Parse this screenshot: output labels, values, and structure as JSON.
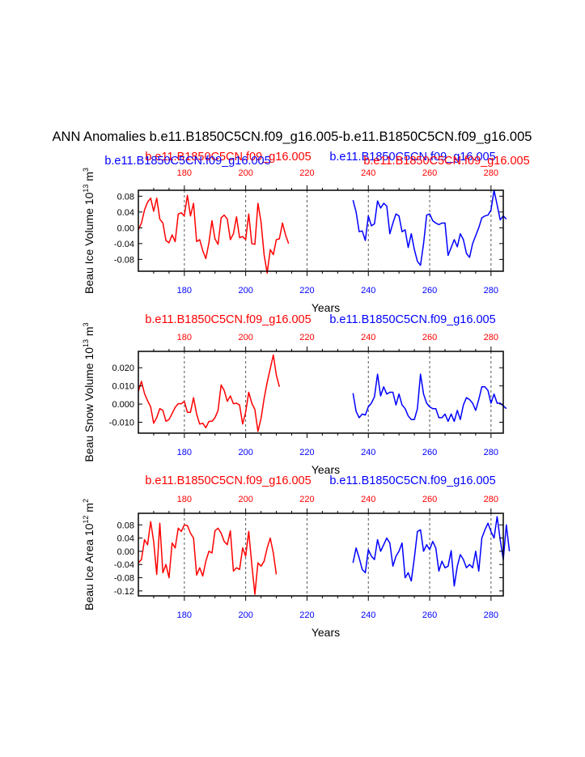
{
  "title": "ANN Anomalies b.e11.B1850C5CN.f09_g16.005-b.e11.B1850C5CN.f09_g16.005",
  "colors": {
    "series_a": "#ff0000",
    "series_b": "#0000ff",
    "axis": "#000000",
    "refline": "#555555"
  },
  "chart_data": [
    {
      "type": "line",
      "ylabel": "Beau Ice Volume 10",
      "ylabel_exp": "13",
      "ylabel_unit": " m",
      "ylabel_unit_exp": "3",
      "xlabel": "Years",
      "xlim": [
        165,
        284
      ],
      "ylim": [
        -0.11,
        0.095
      ],
      "yticks": [
        0.08,
        0.04,
        0.0,
        -0.04,
        -0.08
      ],
      "ytick_labels": [
        "0.08",
        "0.04",
        "0.00",
        "-0.04",
        "-0.08"
      ],
      "xticks": [
        180,
        200,
        220,
        240,
        260,
        280
      ],
      "refline_x": [
        180,
        200,
        220,
        240,
        260,
        280
      ],
      "top_labels": [
        {
          "text": "b.e11.B1850C5CN.f09_g16.005",
          "color": "red"
        },
        {
          "text": "b.e11.B1850C5CN.f09_g16.005",
          "color": "blue"
        },
        {
          "text": "b.e11.B1850C5CN.f09_g16.005",
          "color": "blue"
        },
        {
          "text": "b.e11.B1850C5CN.f09_g16.005",
          "color": "red"
        }
      ],
      "series": [
        {
          "name": "b.e11.B1850C5CN.f09_g16.005",
          "color": "red",
          "x_start": 165,
          "values": [
            -0.005,
            0.012,
            0.045,
            0.065,
            0.075,
            0.042,
            0.075,
            0.022,
            0.012,
            -0.032,
            -0.038,
            -0.018,
            -0.035,
            0.035,
            0.038,
            0.03,
            0.082,
            0.03,
            0.062,
            -0.035,
            -0.03,
            -0.058,
            -0.078,
            -0.038,
            0.018,
            -0.028,
            -0.042,
            0.025,
            0.032,
            0.022,
            -0.03,
            -0.015,
            0.028,
            -0.025,
            -0.022,
            -0.03,
            0.035,
            -0.04,
            -0.042,
            0.062,
            0.015,
            -0.068,
            -0.115,
            -0.055,
            -0.068,
            -0.03,
            -0.028,
            0.012,
            -0.018,
            -0.04
          ]
        },
        {
          "name": "b.e11.B1850C5CN.f09_g16.005",
          "color": "blue",
          "x_start": 235,
          "values": [
            0.07,
            0.04,
            -0.01,
            -0.008,
            -0.032,
            0.03,
            0.005,
            0.01,
            0.068,
            0.05,
            0.062,
            0.055,
            -0.015,
            0.012,
            0.035,
            0.03,
            -0.01,
            -0.005,
            -0.05,
            -0.015,
            -0.055,
            -0.085,
            -0.095,
            -0.04,
            0.032,
            0.035,
            0.018,
            0.012,
            0.008,
            0.012,
            0.012,
            -0.07,
            -0.05,
            -0.03,
            -0.048,
            -0.015,
            -0.03,
            -0.065,
            -0.075,
            -0.04,
            -0.02,
            0.0,
            0.025,
            0.03,
            0.032,
            0.045,
            0.095,
            0.058,
            0.02,
            0.03,
            0.022
          ]
        }
      ]
    },
    {
      "type": "line",
      "ylabel": "Beau Snow Volume 10",
      "ylabel_exp": "13",
      "ylabel_unit": " m",
      "ylabel_unit_exp": "3",
      "xlabel": "Years",
      "xlim": [
        165,
        284
      ],
      "ylim": [
        -0.016,
        0.029
      ],
      "yticks": [
        0.02,
        0.01,
        0.0,
        -0.01
      ],
      "ytick_labels": [
        "0.020",
        "0.010",
        "0.000",
        "-0.010"
      ],
      "xticks": [
        180,
        200,
        220,
        240,
        260,
        280
      ],
      "refline_x": [
        180,
        200,
        240,
        260,
        280
      ],
      "top_labels": [
        {
          "text": "b.e11.B1850C5CN.f09_g16.005",
          "color": "red"
        },
        {
          "text": "b.e11.B1850C5CN.f09_g16.005",
          "color": "blue"
        }
      ],
      "series": [
        {
          "name": "b.e11.B1850C5CN.f09_g16.005",
          "color": "red",
          "x_start": 165,
          "values": [
            0.007,
            0.0125,
            0.0058,
            0.0018,
            -0.0015,
            -0.0105,
            -0.0075,
            -0.0025,
            -0.0035,
            -0.0095,
            -0.0085,
            -0.0052,
            -0.0018,
            0.0002,
            0.0002,
            0.0015,
            -0.0045,
            -0.0045,
            0.0035,
            -0.0055,
            -0.011,
            -0.0105,
            -0.013,
            -0.0095,
            -0.0095,
            -0.0075,
            -0.0035,
            0.0105,
            0.0075,
            0.0015,
            0.0045,
            0.0002,
            0.0005,
            -0.0005,
            -0.011,
            -0.0045,
            0.0065,
            0.0005,
            -0.003,
            -0.015,
            -0.008,
            0.003,
            0.012,
            0.0195,
            0.027,
            0.016,
            0.0095
          ]
        },
        {
          "name": "b.e11.B1850C5CN.f09_g16.005",
          "color": "blue",
          "x_start": 235,
          "values": [
            0.006,
            -0.004,
            -0.0075,
            -0.0055,
            -0.006,
            -0.0015,
            0.0005,
            0.004,
            0.0165,
            0.0045,
            0.0095,
            0.0055,
            0.0065,
            0.0065,
            -0.0005,
            0.0055,
            -0.0005,
            -0.0025,
            -0.0065,
            -0.0085,
            -0.0085,
            -0.0025,
            0.0165,
            0.0055,
            0.0005,
            -0.0015,
            -0.0025,
            -0.0025,
            -0.0075,
            -0.0075,
            -0.0055,
            -0.0095,
            -0.0055,
            -0.0095,
            -0.0035,
            -0.0085,
            -0.0005,
            0.0035,
            0.0025,
            0.0005,
            -0.0035,
            0.0025,
            0.0095,
            0.0095,
            0.0075,
            0.0005,
            0.0055,
            0.0005,
            0.0005,
            -0.001,
            -0.0025
          ]
        }
      ]
    },
    {
      "type": "line",
      "ylabel": "Beau Ice Area 10",
      "ylabel_exp": "12",
      "ylabel_unit": " m",
      "ylabel_unit_exp": "2",
      "xlabel": "Years",
      "xlim": [
        165,
        284
      ],
      "ylim": [
        -0.135,
        0.115
      ],
      "yticks": [
        0.08,
        0.04,
        0.0,
        -0.04,
        -0.08,
        -0.12
      ],
      "ytick_labels": [
        "0.08",
        "0.04",
        "0.00",
        "-0.04",
        "-0.08",
        "-0.12"
      ],
      "xticks": [
        180,
        200,
        220,
        240,
        260,
        280
      ],
      "refline_x": [
        180,
        200,
        220,
        240,
        260,
        280
      ],
      "top_labels": [
        {
          "text": "b.e11.B1850C5CN.f09_g16.005",
          "color": "red"
        },
        {
          "text": "b.e11.B1850C5CN.f09_g16.005",
          "color": "blue"
        }
      ],
      "series": [
        {
          "name": "b.e11.B1850C5CN.f09_g16.005",
          "color": "red",
          "x_start": 165,
          "values": [
            -0.035,
            -0.025,
            0.035,
            0.02,
            0.09,
            0.03,
            -0.07,
            0.085,
            -0.065,
            -0.04,
            -0.08,
            0.025,
            0.01,
            0.07,
            0.06,
            0.08,
            0.078,
            0.055,
            0.04,
            -0.072,
            -0.05,
            -0.075,
            -0.03,
            0.0,
            -0.005,
            0.062,
            0.07,
            0.055,
            0.03,
            0.02,
            0.062,
            -0.06,
            -0.05,
            -0.055,
            0.01,
            -0.015,
            0.06,
            -0.04,
            -0.13,
            -0.035,
            -0.045,
            -0.03,
            0.01,
            0.04,
            -0.005,
            -0.07
          ]
        },
        {
          "name": "b.e11.B1850C5CN.f09_g16.005",
          "color": "blue",
          "x_start": 235,
          "values": [
            -0.035,
            0.01,
            -0.02,
            -0.055,
            -0.065,
            0.005,
            -0.015,
            -0.025,
            0.035,
            0.0,
            0.02,
            0.04,
            0.025,
            -0.045,
            -0.015,
            0.0,
            0.025,
            -0.08,
            -0.065,
            -0.09,
            -0.02,
            0.06,
            0.065,
            0.0,
            0.02,
            0.005,
            0.03,
            0.01,
            -0.06,
            -0.03,
            -0.05,
            -0.045,
            0.002,
            -0.105,
            -0.045,
            -0.01,
            -0.025,
            -0.05,
            -0.04,
            -0.05,
            0.0,
            -0.06,
            0.04,
            0.065,
            0.085,
            0.06,
            0.04,
            0.105,
            0.035,
            -0.025,
            0.08,
            0.0
          ]
        }
      ]
    }
  ]
}
